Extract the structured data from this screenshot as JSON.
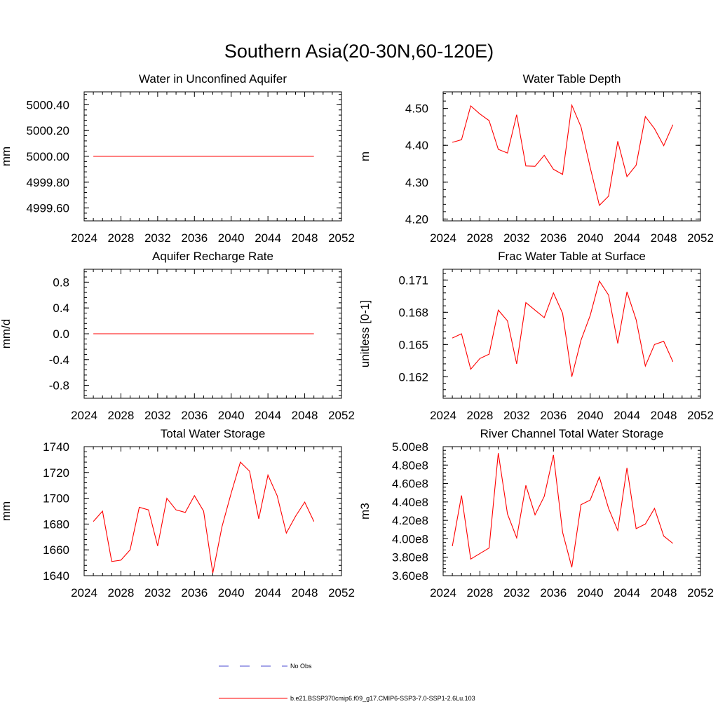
{
  "figure_title": "Southern Asia(20-30N,60-120E)",
  "legend": {
    "entries": [
      {
        "label": "No Obs",
        "style": "dashed",
        "color": "#4a4ad0"
      },
      {
        "label": "b.e21.BSSP370cmip6.f09_g17.CMIP6-SSP3-7.0-SSP1-2.6Lu.103",
        "style": "solid",
        "color": "#ff0000"
      }
    ]
  },
  "colors": {
    "series": "#ff0000",
    "axes": "#000000"
  },
  "chart_data": [
    {
      "type": "line",
      "title": "Water in Unconfined Aquifer",
      "ylabel": "mm",
      "xlim": [
        2024,
        2052
      ],
      "ylim": [
        4999.5,
        5000.5
      ],
      "xticks": [
        2024,
        2028,
        2032,
        2036,
        2040,
        2044,
        2048,
        2052
      ],
      "xtick_labels": [
        "2024",
        "2028",
        "2032",
        "2036",
        "2040",
        "2044",
        "2048",
        "2052"
      ],
      "yticks": [
        4999.6,
        4999.8,
        5000.0,
        5000.2,
        5000.4
      ],
      "ytick_labels": [
        "4999.60",
        "4999.80",
        "5000.00",
        "5000.20",
        "5000.40"
      ],
      "series": [
        {
          "x": [
            2025,
            2026,
            2027,
            2028,
            2029,
            2030,
            2031,
            2032,
            2033,
            2034,
            2035,
            2036,
            2037,
            2038,
            2039,
            2040,
            2041,
            2042,
            2043,
            2044,
            2045,
            2046,
            2047,
            2048,
            2049
          ],
          "y": [
            5000.0,
            5000.0,
            5000.0,
            5000.0,
            5000.0,
            5000.0,
            5000.0,
            5000.0,
            5000.0,
            5000.0,
            5000.0,
            5000.0,
            5000.0,
            5000.0,
            5000.0,
            5000.0,
            5000.0,
            5000.0,
            5000.0,
            5000.0,
            5000.0,
            5000.0,
            5000.0,
            5000.0,
            5000.0
          ]
        }
      ]
    },
    {
      "type": "line",
      "title": "Water Table Depth",
      "ylabel": "m",
      "xlim": [
        2024,
        2052
      ],
      "ylim": [
        4.195,
        4.545
      ],
      "xticks": [
        2024,
        2028,
        2032,
        2036,
        2040,
        2044,
        2048,
        2052
      ],
      "xtick_labels": [
        "2024",
        "2028",
        "2032",
        "2036",
        "2040",
        "2044",
        "2048",
        "2052"
      ],
      "yticks": [
        4.2,
        4.3,
        4.4,
        4.5
      ],
      "ytick_labels": [
        "4.20",
        "4.30",
        "4.40",
        "4.50"
      ],
      "series": [
        {
          "x": [
            2025,
            2026,
            2027,
            2028,
            2029,
            2030,
            2031,
            2032,
            2033,
            2034,
            2035,
            2036,
            2037,
            2038,
            2039,
            2040,
            2041,
            2042,
            2043,
            2044,
            2045,
            2046,
            2047,
            2048,
            2049
          ],
          "y": [
            4.408,
            4.415,
            4.507,
            4.485,
            4.467,
            4.389,
            4.379,
            4.483,
            4.344,
            4.343,
            4.373,
            4.335,
            4.321,
            4.509,
            4.45,
            4.34,
            4.237,
            4.262,
            4.411,
            4.315,
            4.346,
            4.478,
            4.445,
            4.399,
            4.456
          ]
        }
      ]
    },
    {
      "type": "line",
      "title": "Aquifer Recharge Rate",
      "ylabel": "mm/d",
      "xlim": [
        2024,
        2052
      ],
      "ylim": [
        -1.0,
        1.0
      ],
      "xticks": [
        2024,
        2028,
        2032,
        2036,
        2040,
        2044,
        2048,
        2052
      ],
      "xtick_labels": [
        "2024",
        "2028",
        "2032",
        "2036",
        "2040",
        "2044",
        "2048",
        "2052"
      ],
      "yticks": [
        -0.8,
        -0.4,
        0.0,
        0.4,
        0.8
      ],
      "ytick_labels": [
        "-0.8",
        "-0.4",
        "0.0",
        "0.4",
        "0.8"
      ],
      "series": [
        {
          "x": [
            2025,
            2026,
            2027,
            2028,
            2029,
            2030,
            2031,
            2032,
            2033,
            2034,
            2035,
            2036,
            2037,
            2038,
            2039,
            2040,
            2041,
            2042,
            2043,
            2044,
            2045,
            2046,
            2047,
            2048,
            2049
          ],
          "y": [
            0,
            0,
            0,
            0,
            0,
            0,
            0,
            0,
            0,
            0,
            0,
            0,
            0,
            0,
            0,
            0,
            0,
            0,
            0,
            0,
            0,
            0,
            0,
            0,
            0
          ]
        }
      ]
    },
    {
      "type": "line",
      "title": "Frac Water Table at Surface",
      "ylabel": "unitless [0-1]",
      "xlim": [
        2024,
        2052
      ],
      "ylim": [
        0.16,
        0.172
      ],
      "xticks": [
        2024,
        2028,
        2032,
        2036,
        2040,
        2044,
        2048,
        2052
      ],
      "xtick_labels": [
        "2024",
        "2028",
        "2032",
        "2036",
        "2040",
        "2044",
        "2048",
        "2052"
      ],
      "yticks": [
        0.162,
        0.165,
        0.168,
        0.171
      ],
      "ytick_labels": [
        "0.162",
        "0.165",
        "0.168",
        "0.171"
      ],
      "series": [
        {
          "x": [
            2025,
            2026,
            2027,
            2028,
            2029,
            2030,
            2031,
            2032,
            2033,
            2034,
            2035,
            2036,
            2037,
            2038,
            2039,
            2040,
            2041,
            2042,
            2043,
            2044,
            2045,
            2046,
            2047,
            2048,
            2049
          ],
          "y": [
            0.1656,
            0.166,
            0.1627,
            0.1637,
            0.1641,
            0.1682,
            0.1672,
            0.1632,
            0.1689,
            0.1682,
            0.1675,
            0.1698,
            0.1679,
            0.162,
            0.1654,
            0.1677,
            0.1709,
            0.1696,
            0.1651,
            0.1699,
            0.1673,
            0.163,
            0.165,
            0.1653,
            0.1634
          ]
        }
      ]
    },
    {
      "type": "line",
      "title": "Total Water Storage",
      "ylabel": "mm",
      "xlim": [
        2024,
        2052
      ],
      "ylim": [
        1640,
        1740
      ],
      "xticks": [
        2024,
        2028,
        2032,
        2036,
        2040,
        2044,
        2048,
        2052
      ],
      "xtick_labels": [
        "2024",
        "2028",
        "2032",
        "2036",
        "2040",
        "2044",
        "2048",
        "2052"
      ],
      "yticks": [
        1640,
        1660,
        1680,
        1700,
        1720,
        1740
      ],
      "ytick_labels": [
        "1640",
        "1660",
        "1680",
        "1700",
        "1720",
        "1740"
      ],
      "series": [
        {
          "x": [
            2025,
            2026,
            2027,
            2028,
            2029,
            2030,
            2031,
            2032,
            2033,
            2034,
            2035,
            2036,
            2037,
            2038,
            2039,
            2040,
            2041,
            2042,
            2043,
            2044,
            2045,
            2046,
            2047,
            2048,
            2049
          ],
          "y": [
            1682,
            1690,
            1651,
            1652,
            1660,
            1693,
            1691,
            1663,
            1700,
            1691,
            1689,
            1702,
            1690,
            1642,
            1678,
            1704,
            1728,
            1721,
            1684,
            1718,
            1702,
            1673,
            1686,
            1697,
            1682
          ]
        }
      ]
    },
    {
      "type": "line",
      "title": "River Channel Total Water Storage",
      "ylabel": "m3",
      "xlim": [
        2024,
        2052
      ],
      "ylim": [
        360000000,
        500000000
      ],
      "xticks": [
        2024,
        2028,
        2032,
        2036,
        2040,
        2044,
        2048,
        2052
      ],
      "xtick_labels": [
        "2024",
        "2028",
        "2032",
        "2036",
        "2040",
        "2044",
        "2048",
        "2052"
      ],
      "yticks": [
        360000000,
        380000000,
        400000000,
        420000000,
        440000000,
        460000000,
        480000000,
        500000000
      ],
      "ytick_labels": [
        "3.60e8",
        "3.80e8",
        "4.00e8",
        "4.20e8",
        "4.40e8",
        "4.60e8",
        "4.80e8",
        "5.00e8"
      ],
      "series": [
        {
          "x": [
            2025,
            2026,
            2027,
            2028,
            2029,
            2030,
            2031,
            2032,
            2033,
            2034,
            2035,
            2036,
            2037,
            2038,
            2039,
            2040,
            2041,
            2042,
            2043,
            2044,
            2045,
            2046,
            2047,
            2048,
            2049
          ],
          "y": [
            392000000,
            447000000,
            378000000,
            384000000,
            390000000,
            493000000,
            427000000,
            401000000,
            458000000,
            426000000,
            446000000,
            491000000,
            407000000,
            369000000,
            437000000,
            442000000,
            467000000,
            433000000,
            409000000,
            477000000,
            411000000,
            416000000,
            433000000,
            403000000,
            395000000
          ]
        }
      ]
    }
  ]
}
